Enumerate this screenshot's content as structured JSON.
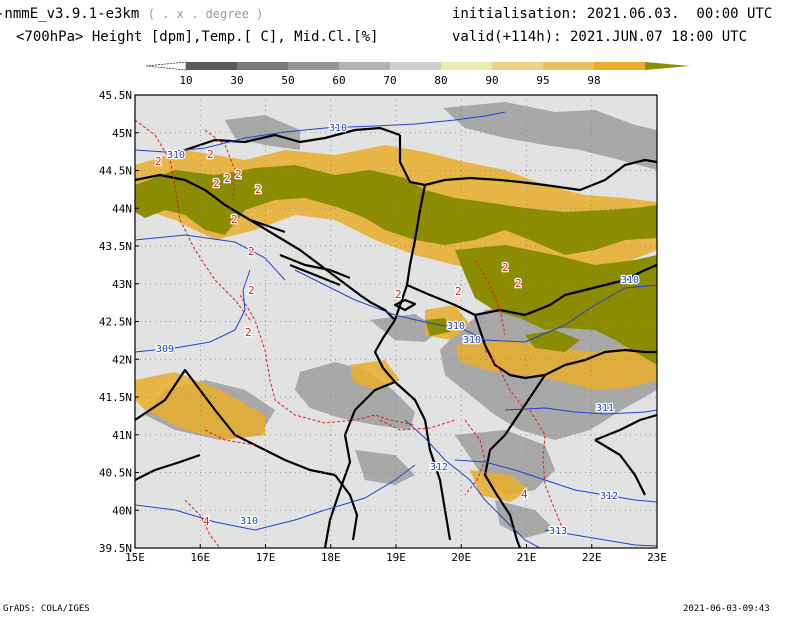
{
  "header": {
    "model_name": "-nmmE_v3.9.1-e3km",
    "grid_note": "( . x . degree )",
    "fields": "<700hPa> Height [dpm],Temp.[ C], Mid.Cl.[%]",
    "initialisation": "initialisation: 2021.06.03.  00:00 UTC",
    "valid": "valid(+114h): 2021.JUN.07 18:00 UTC"
  },
  "colorbar": {
    "labels": [
      "10",
      "30",
      "50",
      "60",
      "70",
      "80",
      "90",
      "95",
      "98"
    ],
    "colors": [
      "#5a5a5a",
      "#7a7a7a",
      "#969696",
      "#b4b4b4",
      "#cfcfcf",
      "#eeeab0",
      "#eed28a",
      "#ebbe63",
      "#e8ae2c",
      "#8c8c00"
    ]
  },
  "map": {
    "lat_ticks": [
      "45.5N",
      "45N",
      "44.5N",
      "44N",
      "43.5N",
      "43N",
      "42.5N",
      "42N",
      "41.5N",
      "41N",
      "40.5N",
      "40N",
      "39.5N"
    ],
    "lon_ticks": [
      "15E",
      "16E",
      "17E",
      "18E",
      "19E",
      "20E",
      "21E",
      "22E",
      "23E"
    ],
    "height_contour_labels": [
      "310",
      "310",
      "310",
      "310",
      "310",
      "309",
      "311",
      "312",
      "312",
      "313",
      "310"
    ],
    "temp_contour_labels": [
      "2",
      "2",
      "2",
      "2",
      "2",
      "2",
      "2",
      "2",
      "2",
      "2",
      "2",
      "2",
      "2",
      "2",
      "4",
      "4"
    ],
    "colors": {
      "background": "#e2e2e2",
      "cloud_full": "#8c8c00",
      "cloud_yellow": "#e8ae2c",
      "height_contour": "#2244cc",
      "temp_contour": "#dd2222",
      "border": "#000000"
    }
  },
  "footer": {
    "left": "GrADS: COLA/IGES",
    "right": "2021-06-03-09:43"
  }
}
